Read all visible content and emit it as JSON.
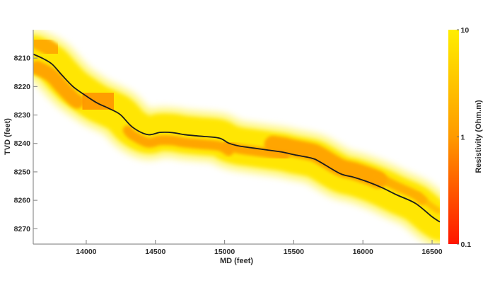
{
  "figure": {
    "background": "#ffffff"
  },
  "chart_data": {
    "type": "heatmap",
    "description": "Inverted resistivity curtain section rendered along a horizontal well trajectory",
    "title": "",
    "xlabel": "MD (feet)",
    "ylabel": "TVD (feet)",
    "xlim": [
      13617,
      16556
    ],
    "ylim": [
      8200,
      8275.4
    ],
    "y_reversed": true,
    "grid": false,
    "x_ticks": [
      14000,
      14500,
      15000,
      15500,
      16000,
      16500
    ],
    "y_ticks": [
      8210,
      8220,
      8230,
      8240,
      8250,
      8260,
      8270
    ],
    "axis_color": "#909090",
    "text_color": "#2b2b2b",
    "colorbar": {
      "label": "Resistivity  (Ohm.m)",
      "scale": "log",
      "min": 0.1,
      "max": 10,
      "tick_values": [
        10,
        1,
        0.1
      ],
      "gradient": [
        {
          "pos": 0.0,
          "color": "#ffee00"
        },
        {
          "pos": 0.5,
          "color": "#ff9a00"
        },
        {
          "pos": 1.0,
          "color": "#ff1600"
        }
      ]
    },
    "trajectory": {
      "name": "well trajectory",
      "color": "#1c1c1c",
      "points": [
        [
          13617,
          8208.6
        ],
        [
          13690,
          8210.2
        ],
        [
          13755,
          8212.2
        ],
        [
          13825,
          8216.0
        ],
        [
          13905,
          8220.0
        ],
        [
          13990,
          8223.0
        ],
        [
          14080,
          8225.8
        ],
        [
          14160,
          8227.6
        ],
        [
          14245,
          8229.8
        ],
        [
          14335,
          8234.3
        ],
        [
          14445,
          8236.9
        ],
        [
          14535,
          8236.1
        ],
        [
          14625,
          8236.2
        ],
        [
          14710,
          8236.9
        ],
        [
          14815,
          8237.4
        ],
        [
          14960,
          8238.1
        ],
        [
          15030,
          8239.9
        ],
        [
          15105,
          8240.9
        ],
        [
          15205,
          8241.6
        ],
        [
          15310,
          8242.3
        ],
        [
          15425,
          8243.1
        ],
        [
          15495,
          8243.9
        ],
        [
          15630,
          8245.2
        ],
        [
          15690,
          8246.5
        ],
        [
          15835,
          8250.6
        ],
        [
          15935,
          8251.9
        ],
        [
          16040,
          8253.6
        ],
        [
          16140,
          8255.6
        ],
        [
          16245,
          8258.1
        ],
        [
          16380,
          8261.1
        ],
        [
          16500,
          8265.8
        ],
        [
          16556,
          8267.6
        ]
      ]
    },
    "band": {
      "halfwidth_ft": 6.5,
      "base_color": "#ffe600",
      "glow_color": "#ffee00",
      "overlays": [
        {
          "from": 13655,
          "to": 13760,
          "offset_ft": -5.0,
          "width_ft": 5.5,
          "color": "#ffa200",
          "opacity": 0.85
        },
        {
          "from": 13645,
          "to": 13935,
          "offset_ft": 4.2,
          "width_ft": 5.0,
          "color": "#ffa200",
          "opacity": 0.95
        },
        {
          "from": 14015,
          "to": 14155,
          "offset_ft": -0.5,
          "width_ft": 14.5,
          "color": "#ff9600",
          "opacity": 0.9
        },
        {
          "from": 14300,
          "to": 15030,
          "offset_ft": 2.8,
          "width_ft": 3.4,
          "color": "#ffa200",
          "opacity": 0.95
        },
        {
          "from": 15020,
          "to": 15430,
          "offset_ft": 1.0,
          "width_ft": 3.4,
          "color": "#ffa200",
          "opacity": 0.95
        },
        {
          "from": 15350,
          "to": 16110,
          "offset_ft": -2.2,
          "width_ft": 6.2,
          "color": "#ffa200",
          "opacity": 0.95
        },
        {
          "from": 16090,
          "to": 16430,
          "offset_ft": -3.0,
          "width_ft": 3.2,
          "color": "#ffa600",
          "opacity": 0.85
        },
        {
          "from": 16400,
          "to": 16545,
          "offset_ft": -3.6,
          "width_ft": 2.2,
          "color": "#ffb000",
          "opacity": 0.7
        }
      ],
      "red_streak_color": "#f02000",
      "red_streaks": [
        {
          "md": 14028,
          "tvd1": 8217.6,
          "tvd2": 8222.4
        },
        {
          "md": 14050,
          "tvd1": 8218.0,
          "tvd2": 8223.0
        },
        {
          "md": 14072,
          "tvd1": 8217.4,
          "tvd2": 8221.2
        },
        {
          "md": 14096,
          "tvd1": 8218.2,
          "tvd2": 8222.6
        },
        {
          "md": 14118,
          "tvd1": 8219.0,
          "tvd2": 8221.6
        },
        {
          "md": 14032,
          "tvd1": 8229.0,
          "tvd2": 8233.4
        },
        {
          "md": 14056,
          "tvd1": 8229.2,
          "tvd2": 8232.2
        },
        {
          "md": 14080,
          "tvd1": 8228.6,
          "tvd2": 8233.6
        },
        {
          "md": 14102,
          "tvd1": 8230.0,
          "tvd2": 8233.2
        },
        {
          "md": 14124,
          "tvd1": 8229.6,
          "tvd2": 8232.2
        },
        {
          "md": 15265,
          "tvd1": 8246.0,
          "tvd2": 8248.4
        },
        {
          "md": 15305,
          "tvd1": 8246.4,
          "tvd2": 8249.0
        },
        {
          "md": 15345,
          "tvd1": 8246.0,
          "tvd2": 8249.6
        },
        {
          "md": 15390,
          "tvd1": 8247.0,
          "tvd2": 8250.0
        },
        {
          "md": 15435,
          "tvd1": 8247.2,
          "tvd2": 8249.8
        },
        {
          "md": 15480,
          "tvd1": 8247.6,
          "tvd2": 8250.2
        },
        {
          "md": 15530,
          "tvd1": 8248.0,
          "tvd2": 8250.0
        },
        {
          "md": 15585,
          "tvd1": 8248.4,
          "tvd2": 8250.4
        },
        {
          "md": 15640,
          "tvd1": 8248.8,
          "tvd2": 8250.6
        }
      ]
    }
  }
}
